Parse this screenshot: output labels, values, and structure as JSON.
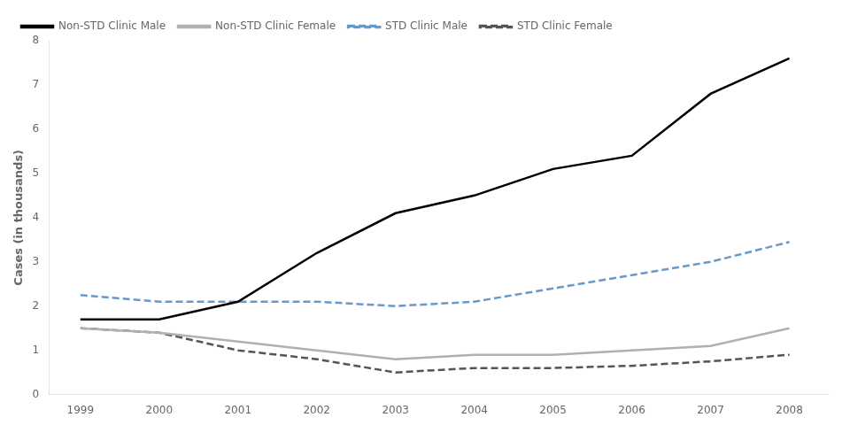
{
  "chart_data": {
    "type": "line",
    "ylabel": "Cases (in thousands)",
    "x": [
      1999,
      2000,
      2001,
      2002,
      2003,
      2004,
      2005,
      2006,
      2007,
      2008
    ],
    "series": [
      {
        "name": "Non-STD Clinic Male",
        "color": "#000000",
        "line_style": "solid",
        "values": [
          1.7,
          1.7,
          2.1,
          3.2,
          4.1,
          4.5,
          5.1,
          5.4,
          6.8,
          7.6
        ]
      },
      {
        "name": "Non-STD Clinic Female",
        "color": "#b0b0b0",
        "line_style": "solid",
        "values": [
          1.5,
          1.4,
          1.2,
          1.0,
          0.8,
          0.9,
          0.9,
          1.0,
          1.1,
          1.5
        ]
      },
      {
        "name": "STD Clinic Male",
        "color": "#6699cc",
        "line_style": "dashed",
        "values": [
          2.25,
          2.1,
          2.1,
          2.1,
          2.0,
          2.1,
          2.4,
          2.7,
          3.0,
          3.45
        ]
      },
      {
        "name": "STD Clinic Female",
        "color": "#555555",
        "line_style": "dashed",
        "values": [
          1.5,
          1.4,
          1.0,
          0.8,
          0.5,
          0.6,
          0.6,
          0.65,
          0.75,
          0.9
        ]
      }
    ],
    "xlim": [
      1998.6,
      2008.5
    ],
    "xticks": [
      1999,
      2000,
      2001,
      2002,
      2003,
      2004,
      2005,
      2006,
      2007,
      2008
    ],
    "ylim": [
      0,
      8
    ],
    "yticks": [
      0,
      1,
      2,
      3,
      4,
      5,
      6,
      7,
      8
    ],
    "grid": false,
    "legend": "upper left",
    "marker": "none"
  }
}
